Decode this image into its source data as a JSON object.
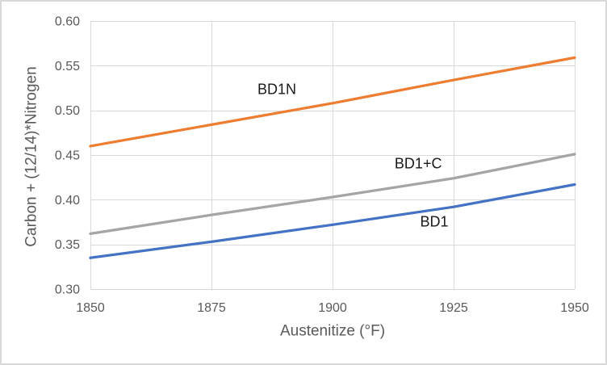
{
  "chart": {
    "background_color": "#ffffff",
    "frame_border_color": "#d9d9d9",
    "grid_color": "#d9d9d9",
    "axis_line_color": "#c8c8c8",
    "tick_label_color": "#595959",
    "axis_title_color": "#595959",
    "series_label_color": "#1a1a1a"
  },
  "chart_data": {
    "type": "line",
    "x": [
      1850,
      1875,
      1900,
      1925,
      1950
    ],
    "series": [
      {
        "name": "BD1N",
        "color": "#ED7D31",
        "values": [
          0.46,
          0.484,
          0.508,
          0.534,
          0.559
        ]
      },
      {
        "name": "BD1+C",
        "color": "#A5A5A5",
        "values": [
          0.362,
          0.383,
          0.403,
          0.424,
          0.451
        ]
      },
      {
        "name": "BD1",
        "color": "#4472C4",
        "values": [
          0.335,
          0.353,
          0.372,
          0.392,
          0.417
        ]
      }
    ],
    "title": "",
    "xlabel": "Austenitize (°F)",
    "ylabel": "Carbon + (12/14)*Nitrogen",
    "xlim": [
      1850,
      1950
    ],
    "ylim": [
      0.3,
      0.6
    ],
    "x_ticks": [
      "1850",
      "1875",
      "1900",
      "1925",
      "1950"
    ],
    "y_ticks": [
      "0.30",
      "0.35",
      "0.40",
      "0.45",
      "0.50",
      "0.55",
      "0.60"
    ],
    "grid": true,
    "legend_position": "inline-labels",
    "annotations": [
      {
        "text": "BD1N",
        "x": 1888.5,
        "y": 0.524
      },
      {
        "text": "BD1+C",
        "x": 1917.7,
        "y": 0.441
      },
      {
        "text": "BD1",
        "x": 1921.0,
        "y": 0.376
      }
    ]
  }
}
